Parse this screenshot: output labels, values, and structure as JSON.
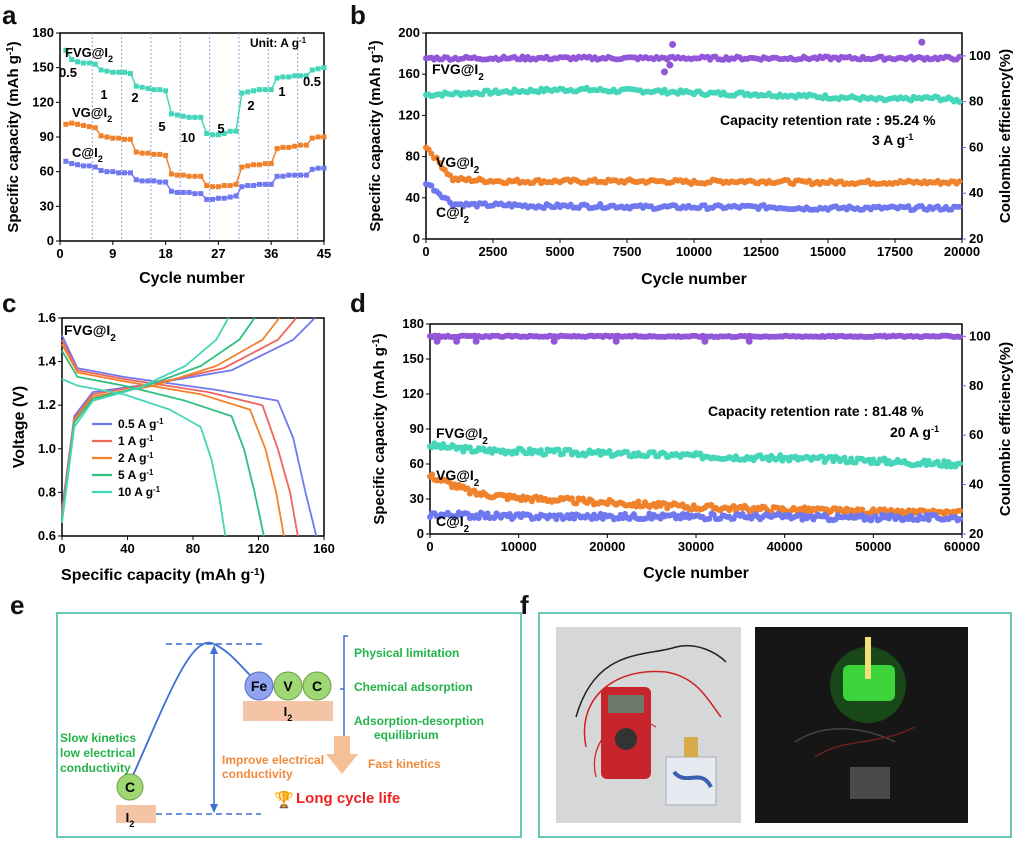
{
  "colors": {
    "teal": "#45d6b9",
    "orange": "#f0822c",
    "blue": "#6f78ef",
    "purple": "#9256d8",
    "frame": "#69c7b8",
    "green": "#23b34a",
    "dash": "#3d6fd2",
    "red": "#f02020"
  },
  "panels": {
    "a": {
      "letter": "a",
      "xlabel": "Cycle number",
      "ylabel": "Specific capacity (mAh g",
      "ylabel_sup": "-1",
      "ylabel_end": ")",
      "unit": "Unit: A g",
      "unit_sup": "-1",
      "xticks": [
        "0",
        "9",
        "18",
        "27",
        "36",
        "45"
      ],
      "yticks": [
        "0",
        "30",
        "60",
        "90",
        "120",
        "150",
        "180"
      ],
      "series_labels": [
        {
          "main": "FVG@I",
          "sub": "2",
          "series": "FVG"
        },
        {
          "main": "VG@I",
          "sub": "2",
          "series": "VG"
        },
        {
          "main": "C@I",
          "sub": "2",
          "series": "C"
        }
      ],
      "rate_labels": [
        "0.5",
        "1",
        "2",
        "5",
        "10",
        "5",
        "2",
        "1",
        "0.5"
      ]
    },
    "b": {
      "letter": "b",
      "xlabel": "Cycle number",
      "ylabel": "Specific capacity (mAh g",
      "ylabel_sup": "-1",
      "ylabel_end": ")",
      "ylabel2": "Coulombic efficiency(%)",
      "xticks": [
        "0",
        "2500",
        "5000",
        "7500",
        "10000",
        "12500",
        "15000",
        "17500",
        "20000"
      ],
      "yticks": [
        "0",
        "40",
        "80",
        "120",
        "160",
        "200"
      ],
      "y2ticks": [
        "20",
        "40",
        "60",
        "80",
        "100"
      ],
      "series_labels": [
        {
          "main": "FVG@I",
          "sub": "2"
        },
        {
          "main": "VG@I",
          "sub": "2"
        },
        {
          "main": "C@I",
          "sub": "2"
        }
      ],
      "note1": "Capacity retention rate : 95.24 %",
      "note2_main": "3 A g",
      "note2_sup": "-1"
    },
    "c": {
      "letter": "c",
      "xlabel": "Specific capacity (mAh g",
      "xlabel_sup": "-1",
      "xlabel_end": ")",
      "ylabel": "Voltage (V)",
      "xticks": [
        "0",
        "40",
        "80",
        "120",
        "160"
      ],
      "yticks": [
        "0.6",
        "0.8",
        "1.0",
        "1.2",
        "1.4",
        "1.6"
      ],
      "title_main": "FVG@I",
      "title_sub": "2",
      "legend": [
        {
          "main": "0.5 A g",
          "sup": "-1",
          "color": "#6f78ef"
        },
        {
          "main": "1 A g",
          "sup": "-1",
          "color": "#f0655a"
        },
        {
          "main": "2 A g",
          "sup": "-1",
          "color": "#f0822c"
        },
        {
          "main": "5 A g",
          "sup": "-1",
          "color": "#2fbf7f"
        },
        {
          "main": "10 A g",
          "sup": "-1",
          "color": "#45d6b9"
        }
      ]
    },
    "d": {
      "letter": "d",
      "xlabel": "Cycle number",
      "ylabel": "Specific capacity (mAh g",
      "ylabel_sup": "-1",
      "ylabel_end": ")",
      "ylabel2": "Coulombic efficiency(%)",
      "xticks": [
        "0",
        "10000",
        "20000",
        "30000",
        "40000",
        "50000",
        "60000"
      ],
      "yticks": [
        "0",
        "30",
        "60",
        "90",
        "120",
        "150",
        "180"
      ],
      "y2ticks": [
        "20",
        "40",
        "60",
        "80",
        "100"
      ],
      "series_labels": [
        {
          "main": "FVG@I",
          "sub": "2"
        },
        {
          "main": "VG@I",
          "sub": "2"
        },
        {
          "main": "C@I",
          "sub": "2"
        }
      ],
      "note1": "Capacity retention rate : 81.48 %",
      "note2_main": "20 A g",
      "note2_sup": "-1"
    },
    "e": {
      "letter": "e",
      "left_text": [
        "Slow kinetics",
        "low electrical",
        "conductivity"
      ],
      "c_letter": "C",
      "i2_main": "I",
      "i2_sub": "2",
      "atoms": [
        "Fe",
        "V",
        "C"
      ],
      "list": [
        "Physical limitation",
        "Chemical adsorption",
        "Adsorption-desorption",
        "equilibrium"
      ],
      "improve": [
        "Improve electrical",
        "conductivity"
      ],
      "fast": "Fast kinetics",
      "life": "Long cycle life"
    },
    "f": {
      "letter": "f"
    }
  },
  "chart_data": [
    {
      "type": "line",
      "title": "a",
      "xlabel": "Cycle number",
      "ylabel": "Specific capacity (mAh g-1)",
      "xlim": [
        0,
        45
      ],
      "ylim": [
        0,
        180
      ],
      "rates_A_per_g": [
        0.5,
        1,
        2,
        5,
        10,
        5,
        2,
        1,
        0.5
      ],
      "series": [
        {
          "name": "FVG@I2",
          "color": "#45d6b9",
          "values": [
            165,
            157,
            155,
            154,
            154,
            153,
            148,
            147,
            146,
            146,
            146,
            145,
            134,
            133,
            132,
            131,
            131,
            130,
            110,
            109,
            108,
            107,
            107,
            107,
            93,
            92,
            92,
            93,
            95,
            95,
            128,
            129,
            130,
            131,
            131,
            131,
            141,
            142,
            142,
            143,
            143,
            143,
            148,
            149,
            150
          ]
        },
        {
          "name": "VG@I2",
          "color": "#f0822c",
          "values": [
            101,
            102,
            101,
            100,
            99,
            98,
            91,
            90,
            89,
            89,
            88,
            88,
            77,
            76,
            76,
            75,
            75,
            74,
            58,
            57,
            57,
            56,
            56,
            56,
            48,
            47,
            47,
            48,
            48,
            49,
            64,
            65,
            66,
            66,
            67,
            67,
            80,
            81,
            81,
            82,
            83,
            83,
            89,
            90,
            90
          ]
        },
        {
          "name": "C@I2",
          "color": "#6f78ef",
          "values": [
            69,
            67,
            66,
            65,
            65,
            64,
            61,
            60,
            60,
            59,
            59,
            59,
            53,
            52,
            52,
            52,
            51,
            51,
            43,
            42,
            42,
            42,
            41,
            41,
            36,
            36,
            37,
            37,
            38,
            39,
            47,
            48,
            48,
            49,
            49,
            49,
            56,
            56,
            57,
            57,
            57,
            57,
            62,
            63,
            63
          ]
        }
      ]
    },
    {
      "type": "scatter",
      "title": "b",
      "xlabel": "Cycle number",
      "ylabel": "Specific capacity (mAh g-1)",
      "y2label": "Coulombic efficiency(%)",
      "xlim": [
        0,
        20000
      ],
      "ylim": [
        0,
        200
      ],
      "y2lim": [
        20,
        110
      ],
      "x": [
        0,
        1000,
        2000,
        3000,
        4000,
        5000,
        6000,
        7000,
        8000,
        9000,
        10000,
        11000,
        12000,
        13000,
        14000,
        15000,
        16000,
        17000,
        18000,
        19000,
        20000
      ],
      "series": [
        {
          "name": "FVG@I2",
          "color": "#45d6b9",
          "values": [
            140,
            141,
            142,
            143,
            144,
            145,
            145,
            144,
            144,
            143,
            142,
            141,
            141,
            140,
            139,
            138,
            137,
            135,
            136,
            137,
            134
          ]
        },
        {
          "name": "VG@I2",
          "color": "#f0822c",
          "values": [
            90,
            58,
            57,
            56,
            56,
            56,
            56,
            56,
            56,
            56,
            55,
            56,
            56,
            56,
            55,
            55,
            55,
            55,
            55,
            55,
            55
          ]
        },
        {
          "name": "C@I2",
          "color": "#6f78ef",
          "values": [
            55,
            34,
            33,
            33,
            32,
            32,
            32,
            32,
            31,
            31,
            31,
            31,
            31,
            31,
            30,
            30,
            30,
            30,
            30,
            30,
            30
          ]
        },
        {
          "name": "Coulombic efficiency",
          "axis": "right",
          "color": "#9256d8",
          "values": [
            99,
            99,
            99,
            99,
            99,
            99,
            99,
            99,
            99,
            99,
            99,
            99,
            99,
            99,
            99,
            99,
            99,
            99,
            99,
            99,
            99
          ]
        }
      ],
      "annotations": [
        "Capacity retention rate : 95.24 %",
        "3 A g-1"
      ]
    },
    {
      "type": "line",
      "title": "c",
      "xlabel": "Specific capacity (mAh g-1)",
      "ylabel": "Voltage (V)",
      "xlim": [
        0,
        170
      ],
      "ylim": [
        0.6,
        1.6
      ],
      "series": [
        {
          "name": "0.5 A g-1",
          "color": "#6f78ef",
          "discharge": [
            [
              0,
              1.52
            ],
            [
              10,
              1.37
            ],
            [
              40,
              1.33
            ],
            [
              100,
              1.27
            ],
            [
              140,
              1.22
            ],
            [
              150,
              1.05
            ],
            [
              158,
              0.8
            ],
            [
              165,
              0.6
            ]
          ],
          "charge": [
            [
              0,
              0.72
            ],
            [
              8,
              1.15
            ],
            [
              20,
              1.26
            ],
            [
              60,
              1.3
            ],
            [
              110,
              1.36
            ],
            [
              150,
              1.5
            ],
            [
              164,
              1.6
            ]
          ]
        },
        {
          "name": "1 A g-1",
          "color": "#f0655a",
          "discharge": [
            [
              0,
              1.5
            ],
            [
              10,
              1.36
            ],
            [
              40,
              1.32
            ],
            [
              95,
              1.26
            ],
            [
              130,
              1.2
            ],
            [
              140,
              1.0
            ],
            [
              148,
              0.8
            ],
            [
              153,
              0.6
            ]
          ],
          "charge": [
            [
              0,
              0.7
            ],
            [
              8,
              1.14
            ],
            [
              20,
              1.25
            ],
            [
              60,
              1.3
            ],
            [
              105,
              1.37
            ],
            [
              140,
              1.5
            ],
            [
              152,
              1.6
            ]
          ]
        },
        {
          "name": "2 A g-1",
          "color": "#f0822c",
          "discharge": [
            [
              0,
              1.48
            ],
            [
              10,
              1.35
            ],
            [
              40,
              1.31
            ],
            [
              90,
              1.25
            ],
            [
              122,
              1.18
            ],
            [
              132,
              1.0
            ],
            [
              139,
              0.8
            ],
            [
              144,
              0.6
            ]
          ],
          "charge": [
            [
              0,
              0.69
            ],
            [
              8,
              1.13
            ],
            [
              20,
              1.24
            ],
            [
              60,
              1.29
            ],
            [
              100,
              1.38
            ],
            [
              130,
              1.5
            ],
            [
              141,
              1.6
            ]
          ]
        },
        {
          "name": "5 A g-1",
          "color": "#2fbf7f",
          "discharge": [
            [
              0,
              1.45
            ],
            [
              10,
              1.33
            ],
            [
              40,
              1.29
            ],
            [
              80,
              1.22
            ],
            [
              110,
              1.15
            ],
            [
              118,
              1.0
            ],
            [
              125,
              0.8
            ],
            [
              131,
              0.6
            ]
          ],
          "charge": [
            [
              0,
              0.67
            ],
            [
              8,
              1.12
            ],
            [
              20,
              1.23
            ],
            [
              55,
              1.29
            ],
            [
              90,
              1.38
            ],
            [
              115,
              1.5
            ],
            [
              125,
              1.6
            ]
          ]
        },
        {
          "name": "10 A g-1",
          "color": "#45d6b9",
          "discharge": [
            [
              0,
              1.32
            ],
            [
              10,
              1.29
            ],
            [
              40,
              1.25
            ],
            [
              70,
              1.18
            ],
            [
              90,
              1.1
            ],
            [
              97,
              0.95
            ],
            [
              102,
              0.78
            ],
            [
              106,
              0.6
            ]
          ],
          "charge": [
            [
              0,
              0.66
            ],
            [
              8,
              1.1
            ],
            [
              20,
              1.22
            ],
            [
              50,
              1.28
            ],
            [
              80,
              1.38
            ],
            [
              100,
              1.5
            ],
            [
              108,
              1.6
            ]
          ]
        }
      ]
    },
    {
      "type": "scatter",
      "title": "d",
      "xlabel": "Cycle number",
      "ylabel": "Specific capacity (mAh g-1)",
      "y2label": "Coulombic efficiency(%)",
      "xlim": [
        0,
        60000
      ],
      "ylim": [
        0,
        180
      ],
      "y2lim": [
        20,
        105
      ],
      "x": [
        0,
        5000,
        10000,
        15000,
        20000,
        25000,
        30000,
        35000,
        40000,
        45000,
        50000,
        55000,
        60000
      ],
      "series": [
        {
          "name": "FVG@I2",
          "color": "#45d6b9",
          "values": [
            76,
            72,
            71,
            70,
            69,
            68,
            67,
            66,
            65,
            64,
            63,
            61,
            60
          ]
        },
        {
          "name": "VG@I2",
          "color": "#f0822c",
          "values": [
            50,
            35,
            31,
            29,
            27,
            25,
            23,
            22,
            21,
            20,
            19,
            18,
            18
          ]
        },
        {
          "name": "C@I2",
          "color": "#6f78ef",
          "values": [
            17,
            16,
            15,
            15,
            15,
            15,
            15,
            15,
            15,
            14,
            14,
            14,
            14
          ]
        },
        {
          "name": "Coulombic efficiency",
          "axis": "right",
          "color": "#9256d8",
          "values": [
            100,
            100,
            100,
            100,
            100,
            100,
            100,
            100,
            100,
            100,
            100,
            100,
            100
          ]
        }
      ],
      "annotations": [
        "Capacity retention rate : 81.48 %",
        "20 A g-1"
      ]
    }
  ]
}
